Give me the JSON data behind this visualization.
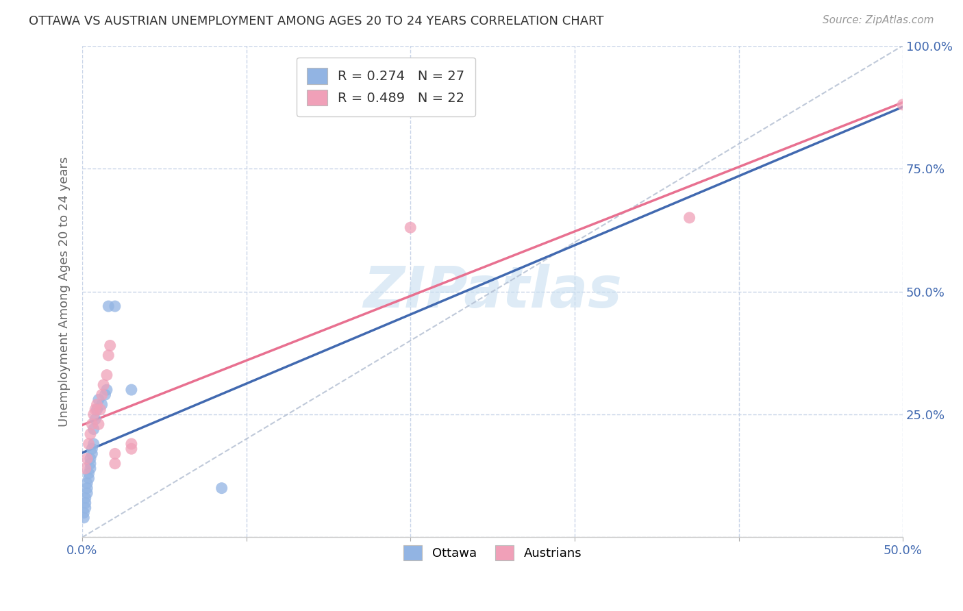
{
  "title": "OTTAWA VS AUSTRIAN UNEMPLOYMENT AMONG AGES 20 TO 24 YEARS CORRELATION CHART",
  "source": "Source: ZipAtlas.com",
  "ylabel": "Unemployment Among Ages 20 to 24 years",
  "xlim": [
    0.0,
    0.5
  ],
  "ylim": [
    0.0,
    1.0
  ],
  "xticks": [
    0.0,
    0.1,
    0.2,
    0.3,
    0.4,
    0.5
  ],
  "yticks": [
    0.0,
    0.25,
    0.5,
    0.75,
    1.0
  ],
  "xticklabels": [
    "0.0%",
    "",
    "",
    "",
    "",
    "50.0%"
  ],
  "yticklabels_right": [
    "",
    "25.0%",
    "50.0%",
    "75.0%",
    "100.0%"
  ],
  "ottawa_R": 0.274,
  "ottawa_N": 27,
  "austrians_R": 0.489,
  "austrians_N": 22,
  "ottawa_color": "#92b4e3",
  "austrians_color": "#f0a0b8",
  "ottawa_line_color": "#4169b0",
  "austrians_line_color": "#e87090",
  "diagonal_color": "#b0bcd0",
  "watermark": "ZIPatlas",
  "background_color": "#ffffff",
  "grid_color": "#c8d4e8",
  "ottawa_x": [
    0.001,
    0.001,
    0.002,
    0.002,
    0.002,
    0.003,
    0.003,
    0.003,
    0.004,
    0.004,
    0.005,
    0.005,
    0.005,
    0.006,
    0.006,
    0.007,
    0.007,
    0.008,
    0.009,
    0.01,
    0.012,
    0.014,
    0.015,
    0.016,
    0.02,
    0.03,
    0.085
  ],
  "ottawa_y": [
    0.04,
    0.05,
    0.06,
    0.07,
    0.08,
    0.09,
    0.1,
    0.11,
    0.12,
    0.13,
    0.14,
    0.15,
    0.16,
    0.17,
    0.18,
    0.19,
    0.22,
    0.24,
    0.26,
    0.28,
    0.27,
    0.29,
    0.3,
    0.47,
    0.47,
    0.3,
    0.1
  ],
  "austrians_x": [
    0.002,
    0.003,
    0.004,
    0.005,
    0.006,
    0.007,
    0.008,
    0.009,
    0.01,
    0.011,
    0.012,
    0.013,
    0.015,
    0.016,
    0.017,
    0.02,
    0.02,
    0.03,
    0.03,
    0.2,
    0.37,
    0.5
  ],
  "austrians_y": [
    0.14,
    0.16,
    0.19,
    0.21,
    0.23,
    0.25,
    0.26,
    0.27,
    0.23,
    0.26,
    0.29,
    0.31,
    0.33,
    0.37,
    0.39,
    0.15,
    0.17,
    0.18,
    0.19,
    0.63,
    0.65,
    0.88
  ]
}
